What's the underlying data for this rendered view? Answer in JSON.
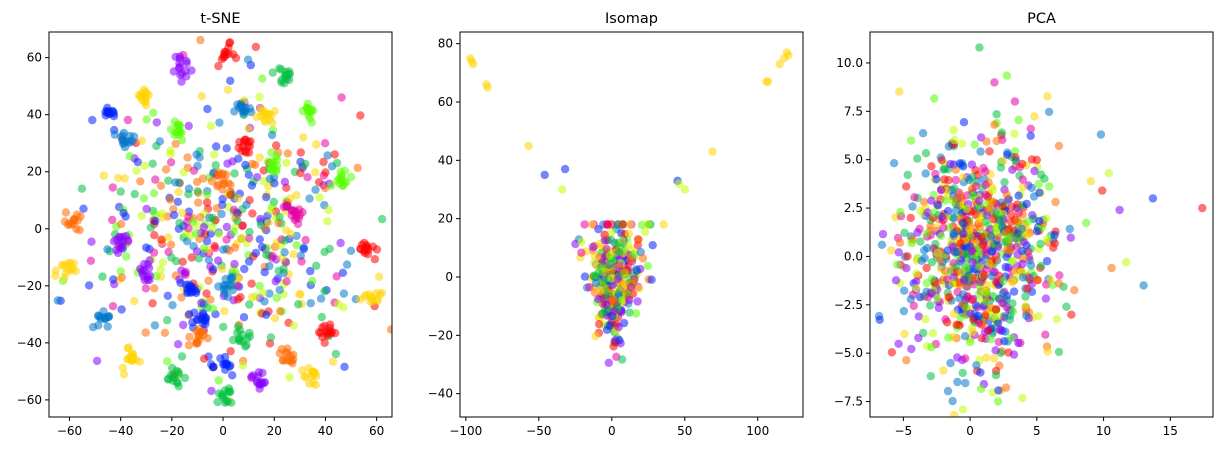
{
  "colors": {
    "palette": [
      "#ff0000",
      "#ff6a00",
      "#ffd400",
      "#c0ff00",
      "#55ff00",
      "#00c040",
      "#0077cc",
      "#0020ff",
      "#8800ff",
      "#e600a0"
    ]
  },
  "chart_data": [
    {
      "type": "scatter",
      "title": "t-SNE",
      "xlim": [
        -68,
        66
      ],
      "ylim": [
        -66,
        69
      ],
      "xticks": [
        -60,
        -40,
        -20,
        0,
        20,
        40,
        60
      ],
      "yticks": [
        -60,
        -40,
        -20,
        0,
        20,
        40,
        60
      ],
      "tick_labels_x": [
        "−60",
        "−40",
        "−20",
        "0",
        "20",
        "40",
        "60"
      ],
      "tick_labels_y": [
        "−60",
        "−40",
        "−20",
        "0",
        "20",
        "40",
        "60"
      ],
      "grid": false,
      "point_alpha": 0.55,
      "clusters": [
        {
          "x": -58,
          "y": 3,
          "c": 1
        },
        {
          "x": -62,
          "y": -15,
          "c": 2
        },
        {
          "x": -45,
          "y": 40,
          "c": 7
        },
        {
          "x": -38,
          "y": 31,
          "c": 6
        },
        {
          "x": -31,
          "y": 46,
          "c": 2
        },
        {
          "x": -30,
          "y": -15,
          "c": 8
        },
        {
          "x": -36,
          "y": -45,
          "c": 2
        },
        {
          "x": -47,
          "y": -31,
          "c": 6
        },
        {
          "x": -15,
          "y": 56,
          "c": 8
        },
        {
          "x": 1,
          "y": 61,
          "c": 0
        },
        {
          "x": 7,
          "y": 41,
          "c": 6
        },
        {
          "x": 17,
          "y": 40,
          "c": 2
        },
        {
          "x": 24,
          "y": 53,
          "c": 5
        },
        {
          "x": 33,
          "y": 42,
          "c": 4
        },
        {
          "x": 28,
          "y": 6,
          "c": 9
        },
        {
          "x": 46,
          "y": 17,
          "c": 4
        },
        {
          "x": 57,
          "y": -7,
          "c": 0
        },
        {
          "x": 58,
          "y": -23,
          "c": 2
        },
        {
          "x": 41,
          "y": -36,
          "c": 0
        },
        {
          "x": 35,
          "y": -52,
          "c": 2
        },
        {
          "x": 14,
          "y": -53,
          "c": 8
        },
        {
          "x": -10,
          "y": -38,
          "c": 1
        },
        {
          "x": -19,
          "y": -52,
          "c": 5
        },
        {
          "x": 1,
          "y": -48,
          "c": 7
        },
        {
          "x": -9,
          "y": -32,
          "c": 7
        },
        {
          "x": 8,
          "y": -38,
          "c": 5
        },
        {
          "x": -13,
          "y": -21,
          "c": 7
        },
        {
          "x": -18,
          "y": 34,
          "c": 4
        },
        {
          "x": 9,
          "y": 29,
          "c": 0
        },
        {
          "x": 20,
          "y": 23,
          "c": 4
        },
        {
          "x": 0,
          "y": 17,
          "c": 1
        },
        {
          "x": 25,
          "y": -45,
          "c": 1
        },
        {
          "x": 3,
          "y": -20,
          "c": 6
        },
        {
          "x": 1,
          "y": -59,
          "c": 5
        },
        {
          "x": -40,
          "y": -5,
          "c": 8
        }
      ],
      "cloud": {
        "cx": 2,
        "cy": 0,
        "sx": 26,
        "sy": 22
      }
    },
    {
      "type": "scatter",
      "title": "Isomap",
      "xlim": [
        -104,
        131
      ],
      "ylim": [
        -48,
        84
      ],
      "xticks": [
        -100,
        -50,
        0,
        50,
        100
      ],
      "yticks": [
        -40,
        -20,
        0,
        20,
        40,
        60,
        80
      ],
      "tick_labels_x": [
        "−100",
        "−50",
        "0",
        "50",
        "100"
      ],
      "tick_labels_y": [
        "−40",
        "−20",
        "0",
        "20",
        "40",
        "60",
        "80"
      ],
      "grid": false,
      "point_alpha": 0.55,
      "outliers": [
        {
          "x": -97,
          "y": 75,
          "c": 2
        },
        {
          "x": -95,
          "y": 73,
          "c": 2
        },
        {
          "x": -96,
          "y": 74,
          "c": 2
        },
        {
          "x": -86,
          "y": 66,
          "c": 2
        },
        {
          "x": -85,
          "y": 65,
          "c": 2
        },
        {
          "x": -57,
          "y": 45,
          "c": 2
        },
        {
          "x": -46,
          "y": 35,
          "c": 7
        },
        {
          "x": -32,
          "y": 37,
          "c": 7
        },
        {
          "x": -34,
          "y": 30,
          "c": 3
        },
        {
          "x": 45,
          "y": 33,
          "c": 7
        },
        {
          "x": 46,
          "y": 32,
          "c": 3
        },
        {
          "x": 50,
          "y": 30,
          "c": 3
        },
        {
          "x": 69,
          "y": 43,
          "c": 2
        },
        {
          "x": 106,
          "y": 67,
          "c": 2
        },
        {
          "x": 107,
          "y": 67,
          "c": 2
        },
        {
          "x": 115,
          "y": 73,
          "c": 2
        },
        {
          "x": 118,
          "y": 75,
          "c": 2
        },
        {
          "x": 120,
          "y": 77,
          "c": 2
        },
        {
          "x": 121,
          "y": 76,
          "c": 2
        }
      ],
      "cloud": {
        "cx": 2,
        "cy": 0,
        "sx": 9,
        "sy": 11
      }
    },
    {
      "type": "scatter",
      "title": "PCA",
      "xlim": [
        -7.5,
        18.2
      ],
      "ylim": [
        -8.3,
        11.6
      ],
      "xticks": [
        -5,
        0,
        5,
        10,
        15
      ],
      "yticks": [
        -7.5,
        -5.0,
        -2.5,
        0.0,
        2.5,
        5.0,
        7.5,
        10.0
      ],
      "tick_labels_x": [
        "−5",
        "0",
        "5",
        "10",
        "15"
      ],
      "tick_labels_y": [
        "−7.5",
        "−5.0",
        "−2.5",
        "0.0",
        "2.5",
        "5.0",
        "7.5",
        "10.0"
      ],
      "grid": false,
      "point_alpha": 0.55,
      "outliers": [
        {
          "x": 17.4,
          "y": 2.5,
          "c": 0
        },
        {
          "x": 13.7,
          "y": 3.0,
          "c": 7
        },
        {
          "x": 13.0,
          "y": -1.5,
          "c": 6
        },
        {
          "x": 11.7,
          "y": -0.3,
          "c": 3
        },
        {
          "x": 11.2,
          "y": 2.4,
          "c": 8
        },
        {
          "x": 9.8,
          "y": 6.3,
          "c": 6
        },
        {
          "x": 0.7,
          "y": 10.8,
          "c": 5
        },
        {
          "x": -6.6,
          "y": 0.6,
          "c": 6
        },
        {
          "x": 2.1,
          "y": -7.5,
          "c": 4
        },
        {
          "x": 10.4,
          "y": 4.3,
          "c": 3
        },
        {
          "x": 10.6,
          "y": -0.6,
          "c": 1
        },
        {
          "x": 9.9,
          "y": 3.4,
          "c": 0
        }
      ],
      "cloud": {
        "cx": 0.6,
        "cy": 0.2,
        "sx": 2.9,
        "sy": 2.9
      }
    }
  ]
}
